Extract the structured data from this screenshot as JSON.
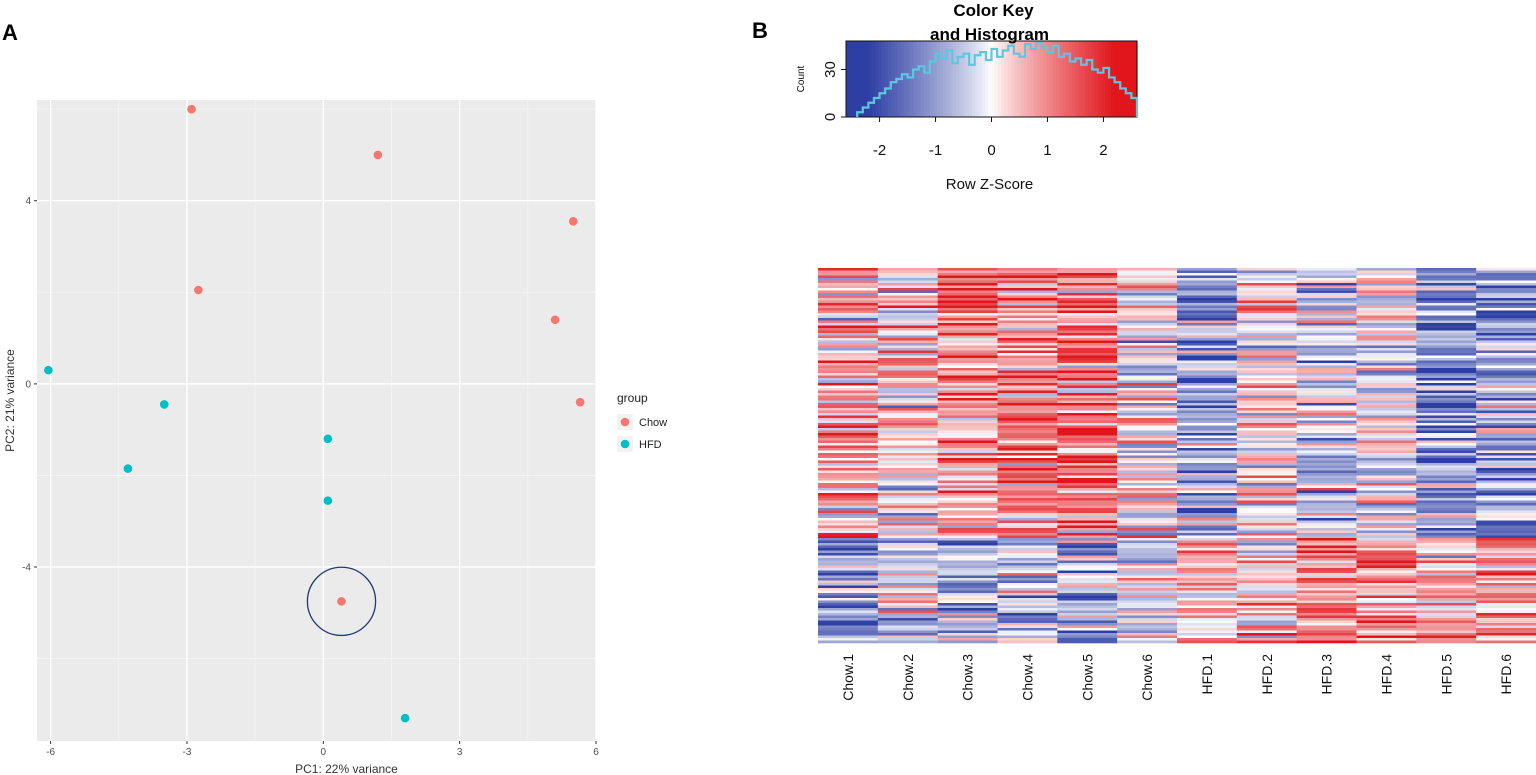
{
  "panel_a_letter": "A",
  "panel_b_letter": "B",
  "chart_data": [
    {
      "type": "scatter",
      "panel": "A",
      "xlabel": "PC1: 22% variance",
      "ylabel": "PC2: 21% variance",
      "xlim": [
        -6.3,
        6.0
      ],
      "ylim": [
        -7.8,
        6.2
      ],
      "xticks": [
        -6,
        -3,
        0,
        3,
        6
      ],
      "yticks": [
        -4,
        0,
        4
      ],
      "legend_title": "group",
      "legend_position": "right",
      "colors": {
        "Chow": "#F8766D",
        "HFD": "#00BFC4",
        "highlight": "#1f3a6e",
        "panel_bg": "#EBEBEB",
        "grid": "#FFFFFF"
      },
      "series": [
        {
          "name": "Chow",
          "points": [
            {
              "x": -2.9,
              "y": 6.0
            },
            {
              "x": 1.2,
              "y": 5.0
            },
            {
              "x": 5.5,
              "y": 3.55
            },
            {
              "x": -2.75,
              "y": 2.05
            },
            {
              "x": 5.1,
              "y": 1.4
            },
            {
              "x": 5.65,
              "y": -0.4
            },
            {
              "x": 0.4,
              "y": -4.75
            }
          ]
        },
        {
          "name": "HFD",
          "points": [
            {
              "x": -6.05,
              "y": 0.3
            },
            {
              "x": -3.5,
              "y": -0.45
            },
            {
              "x": -4.3,
              "y": -1.85
            },
            {
              "x": 0.1,
              "y": -1.2
            },
            {
              "x": 0.1,
              "y": -2.55
            },
            {
              "x": 1.8,
              "y": -7.3
            }
          ]
        }
      ],
      "highlight": {
        "x": 0.4,
        "y": -4.75,
        "radius_data_x": 0.75
      }
    },
    {
      "type": "heatmap",
      "panel": "B",
      "columns": [
        "Chow.1",
        "Chow.2",
        "Chow.3",
        "Chow.4",
        "Chow.5",
        "Chow.6",
        "HFD.1",
        "HFD.2",
        "HFD.3",
        "HFD.4",
        "HFD.5",
        "HFD.6"
      ],
      "rows": 150,
      "upper_cluster_fraction": 0.72,
      "column_mean_upper": [
        0.6,
        0.25,
        0.85,
        1.0,
        1.2,
        0.05,
        -1.0,
        0.15,
        -0.45,
        -0.25,
        -1.1,
        -0.9
      ],
      "column_mean_lower": [
        -1.2,
        -0.4,
        -0.9,
        -0.8,
        -0.6,
        -0.2,
        0.8,
        0.4,
        1.0,
        1.0,
        0.8,
        0.6
      ],
      "key": {
        "title_line1": "Color Key",
        "title_line2": "and Histogram",
        "xlabel": "Row Z-Score",
        "ylabel": "Count",
        "xlim": [
          -2.6,
          2.6
        ],
        "xticks": [
          -2,
          -1,
          0,
          1,
          2
        ],
        "yticks": [
          0,
          30
        ],
        "ylim": [
          0,
          48
        ],
        "colors": {
          "low": "#2E3FA4",
          "mid": "#FFFFFF",
          "high": "#E0161C",
          "histogram": "#5BC8E0"
        },
        "histogram": {
          "bin_start": -2.4,
          "bin_width": 0.1,
          "counts": [
            3,
            6,
            9,
            12,
            15,
            18,
            22,
            24,
            27,
            25,
            30,
            32,
            28,
            35,
            40,
            37,
            42,
            34,
            38,
            40,
            33,
            39,
            41,
            36,
            43,
            38,
            42,
            45,
            40,
            38,
            46,
            43,
            47,
            44,
            41,
            45,
            38,
            40,
            35,
            37,
            33,
            36,
            30,
            28,
            31,
            25,
            22,
            18,
            15,
            12
          ]
        }
      }
    }
  ]
}
